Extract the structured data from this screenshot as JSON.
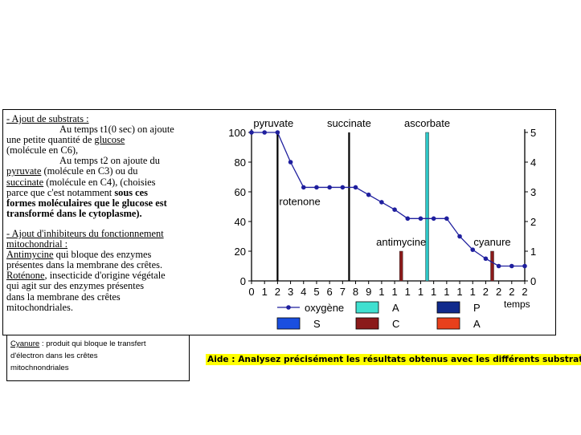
{
  "text": {
    "section1_title": "- Ajout de substrats :",
    "t1_line1": "Au temps t1(0 sec) on ajoute",
    "t1_line2a": "une petite quantité de ",
    "t1_line2b": "glucose",
    "t1_line3": "(molécule en C6),",
    "t2_line1": "Au temps t2 on ajoute du",
    "t2_line2a": "pyruvate",
    "t2_line2b": " (molécule en C3) ou du",
    "t2_line3a": "succinate",
    "t2_line3b": " (molécule en C4), (choisies",
    "t2_line4a": "parce que c'est notamment ",
    "t2_line4b": "sous ces",
    "t2_line5": "formes moléculaires que le glucose est",
    "t2_line6": "transformé dans le cytoplasme).",
    "section2_title1": "- Ajout d'inhibiteurs du fonctionnement",
    "section2_title2": "mitochondrial :",
    "anti_word": "Antimycine",
    "anti_line1": " qui bloque des enzymes",
    "anti_line2": "présentes dans la membrane des crêtes.",
    "rote_word": "Roténone",
    "rote_line1": ", insecticide d'origine végétale",
    "rote_line2": "qui agit sur des enzymes présentes",
    "rote_line3": "dans la membrane des crêtes",
    "rote_line4": "mitochondriales."
  },
  "cyanure_note": {
    "word": "Cyanure",
    "line1": " : produit qui bloque le transfert",
    "line2": "d'électron dans les crêtes",
    "line3": "mitochnondriales"
  },
  "aide": "Aide : Analysez précisément les résultats obtenus avec les différents substrats.",
  "chart_data": {
    "type": "line",
    "x_tick_labels": [
      "0",
      "1",
      "2",
      "3",
      "4",
      "5",
      "6",
      "7",
      "8",
      "9",
      "1",
      "1",
      "1",
      "1",
      "1",
      "1",
      "1",
      "1",
      "2",
      "2",
      "2",
      "2"
    ],
    "xlabel": "temps",
    "ylim": [
      0,
      100
    ],
    "y_ticks": [
      0,
      20,
      40,
      60,
      80,
      100
    ],
    "y2lim": [
      0,
      5
    ],
    "y2_ticks": [
      0,
      1,
      2,
      3,
      4,
      5
    ],
    "series": [
      {
        "name": "oxygène",
        "color": "#1f1f9e",
        "x": [
          0,
          1,
          2,
          3,
          4,
          5,
          6,
          7,
          8,
          9,
          10,
          11,
          12,
          13,
          14,
          15,
          16,
          17,
          18,
          19,
          20,
          21
        ],
        "y": [
          100,
          100,
          100,
          80,
          63,
          63,
          63,
          63,
          63,
          58,
          53,
          48,
          42,
          42,
          42,
          42,
          30,
          21,
          15,
          10,
          10,
          10
        ]
      }
    ],
    "events": [
      {
        "label": "pyruvate",
        "x": 2,
        "height": 5,
        "color": "#000000",
        "label_pos": "above-left"
      },
      {
        "label": "rotenone",
        "x": 2,
        "color": "#000000",
        "label_pos": "mid"
      },
      {
        "label": "succinate",
        "x": 7.5,
        "height": 5,
        "color": "#000000",
        "label_pos": "above"
      },
      {
        "label": "ascorbate",
        "x": 13.5,
        "height": 5,
        "color": "#2ec6c6",
        "label_pos": "above"
      },
      {
        "label": "antimycine",
        "x": 11.5,
        "height": 1,
        "color": "#8b1a1a",
        "label_pos": "above"
      },
      {
        "label": "cyanure",
        "x": 18.5,
        "height": 1,
        "color": "#8b1a1a",
        "label_pos": "above"
      }
    ],
    "legend": [
      {
        "label": "oxygène",
        "kind": "line",
        "color": "#1f1f9e"
      },
      {
        "label": "A",
        "kind": "box",
        "color": "#40e0d0"
      },
      {
        "label": "P",
        "kind": "box",
        "color": "#102a8c"
      },
      {
        "label": "S",
        "kind": "box",
        "color": "#1a4fe0"
      },
      {
        "label": "C",
        "kind": "box",
        "color": "#8b1a1a"
      },
      {
        "label": "A",
        "kind": "box",
        "color": "#e8401c"
      }
    ],
    "legend_position": "bottom"
  }
}
